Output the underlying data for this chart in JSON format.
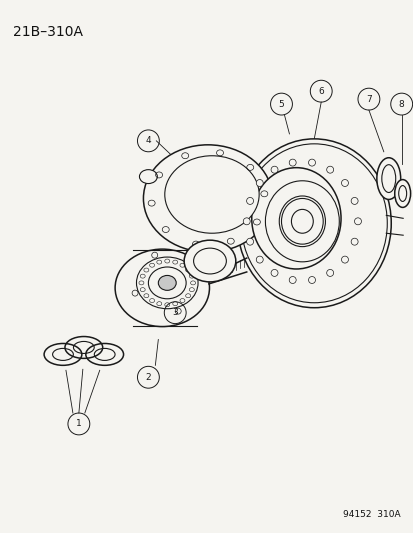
{
  "title_code": "21B–310A",
  "footer_code": "94152  310A",
  "bg_color": "#f5f4f0",
  "line_color": "#1a1a1a",
  "label_color": "#111111",
  "title_fontsize": 10,
  "footer_fontsize": 6.5,
  "callout_r": 0.018
}
